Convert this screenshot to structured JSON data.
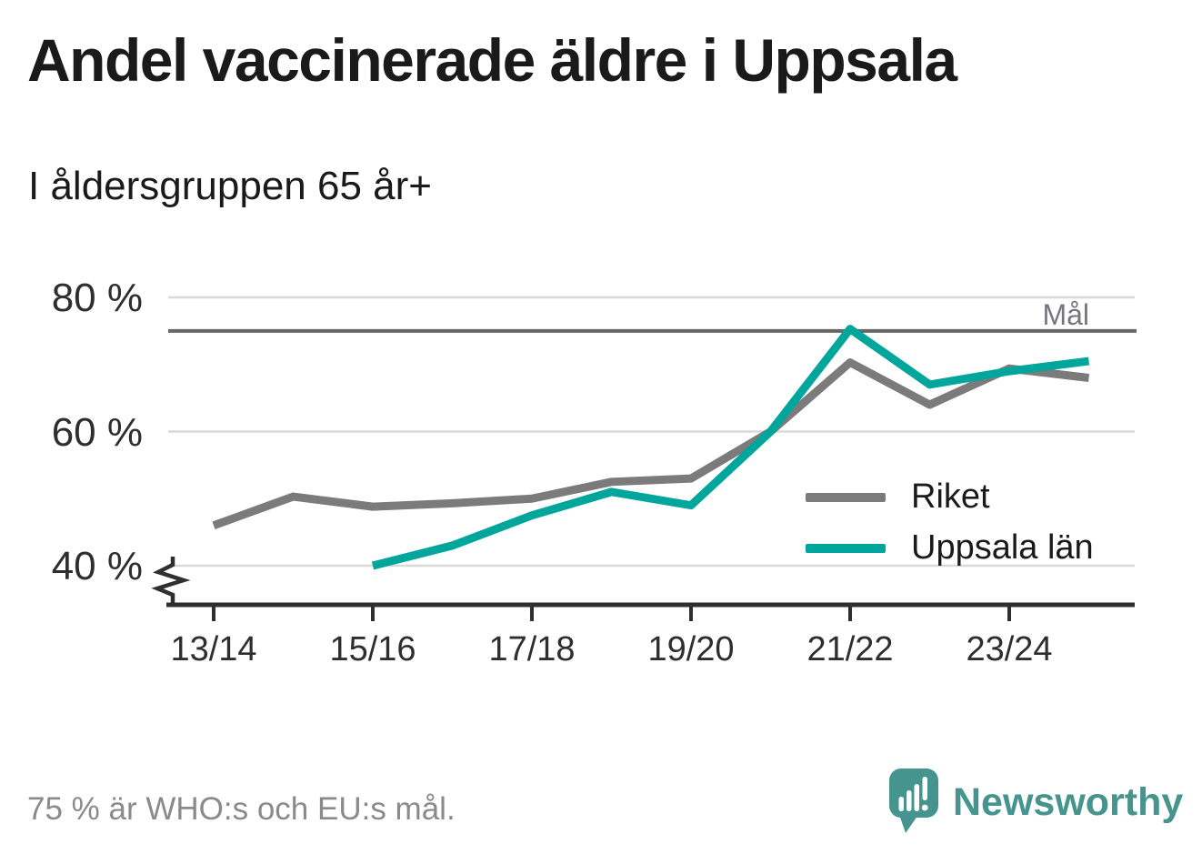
{
  "header": {
    "title": "Andel vaccinerade äldre i Uppsala",
    "subtitle": "I åldersgruppen 65 år+"
  },
  "chart_data": {
    "type": "line",
    "x": [
      "13/14",
      "14/15",
      "15/16",
      "16/17",
      "17/18",
      "18/19",
      "19/20",
      "20/21",
      "21/22",
      "22/23",
      "23/24",
      "24/25"
    ],
    "x_tick_labels": [
      "13/14",
      "15/16",
      "17/18",
      "19/20",
      "21/22",
      "23/24"
    ],
    "y_tick_labels": [
      "80 %",
      "60 %",
      "40 %"
    ],
    "y_tick_values": [
      80,
      60,
      40
    ],
    "ylim": [
      36,
      82
    ],
    "axis_break_below": 40,
    "grid": "horizontal",
    "unit": "%",
    "reference_line": {
      "value": 75,
      "label": "Mål",
      "color": "#666666"
    },
    "legend_position": "inside-right",
    "series": [
      {
        "name": "Riket",
        "color": "#7b7b7b",
        "values": [
          46,
          50.3,
          48.8,
          49.3,
          50,
          52.5,
          53,
          60,
          70.3,
          64,
          69.4,
          68
        ]
      },
      {
        "name": "Uppsala län",
        "color": "#00a69b",
        "values": [
          null,
          null,
          40,
          43,
          47.5,
          51,
          49,
          60,
          75.3,
          67,
          69,
          70.5
        ]
      }
    ]
  },
  "footer": {
    "note": "75 % är WHO:s och EU:s mål.",
    "brand": "Newsworthy",
    "brand_color": "#45948d"
  }
}
